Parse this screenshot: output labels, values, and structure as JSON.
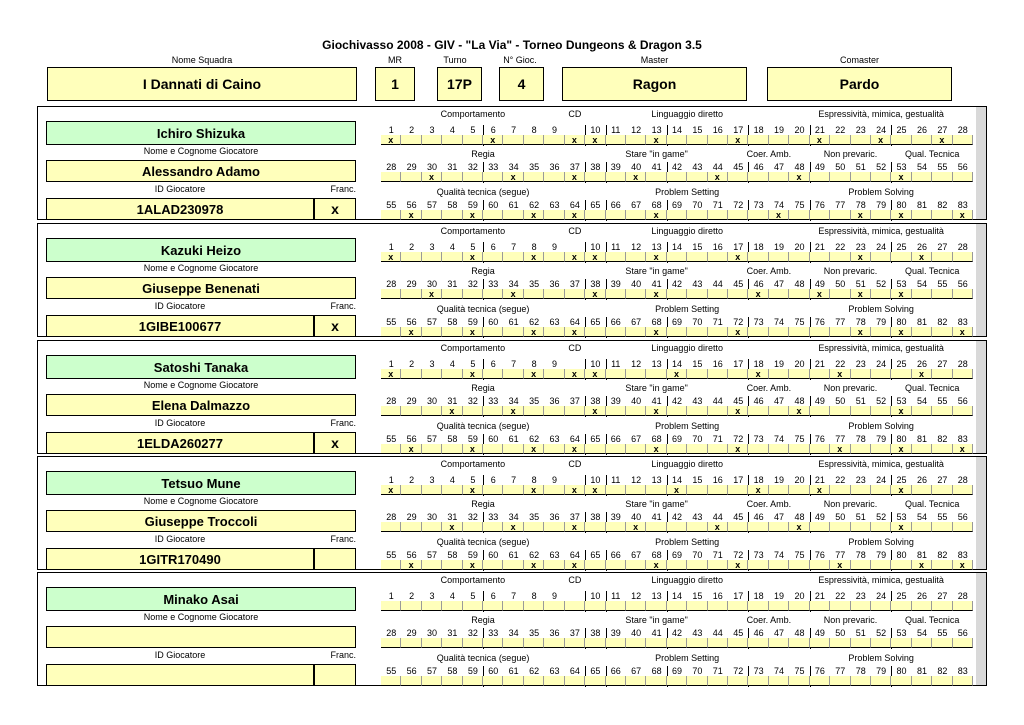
{
  "title": "Giochivasso 2008 - GIV - \"La Via\" - Torneo Dungeons & Dragon 3.5",
  "header": {
    "labels": {
      "team": "Nome Squadra",
      "mr": "MR",
      "turn": "Turno",
      "players": "N° Gioc.",
      "master": "Master",
      "comaster": "Comaster"
    },
    "team": "I Dannati di Caino",
    "mr": "1",
    "turn": "17P",
    "players": "4",
    "master": "Ragon",
    "comaster": "Pardo"
  },
  "labels": {
    "player_name": "Nome e Cognome Giocatore",
    "player_id": "ID Giocatore",
    "franc": "Franc.",
    "comportamento": "Comportamento",
    "cd": "CD",
    "linguaggio": "Linguaggio diretto",
    "espressivita": "Espressività, mimica, gestualità",
    "regia": "Regia",
    "stare": "Stare \"in game\"",
    "coer": "Coer. Amb.",
    "nonprev": "Non prevaric.",
    "qualtec": "Qual. Tecnica",
    "qualtec2": "Qualità tecnica (segue)",
    "problem_setting": "Problem Setting",
    "problem_solving": "Problem Solving"
  },
  "players": [
    {
      "character": "Ichiro Shizuka",
      "player": "Alessandro Adamo",
      "id": "1ALAD230978",
      "franc": "x",
      "row1": [
        1,
        6,
        10,
        13,
        17,
        21,
        24,
        27
      ],
      "row2": [
        30,
        34,
        37,
        40,
        44,
        48,
        53
      ],
      "row3": [
        56,
        59,
        62,
        64,
        68,
        74,
        78,
        80,
        83
      ]
    },
    {
      "character": "Kazuki Heizo",
      "player": "Giuseppe Benenati",
      "id": "1GIBE100677",
      "franc": "x",
      "row1": [
        1,
        5,
        8,
        10,
        13,
        17,
        23,
        26
      ],
      "row2": [
        30,
        34,
        38,
        41,
        46,
        49,
        51,
        53
      ],
      "row3": [
        56,
        59,
        62,
        64,
        68,
        72,
        78,
        80,
        83
      ]
    },
    {
      "character": "Satoshi Tanaka",
      "player": "Elena Dalmazzo",
      "id": "1ELDA260277",
      "franc": "x",
      "row1": [
        1,
        5,
        8,
        10,
        14,
        18,
        22,
        26
      ],
      "row2": [
        31,
        34,
        38,
        41,
        45,
        48,
        53
      ],
      "row3": [
        56,
        59,
        62,
        64,
        68,
        72,
        77,
        80,
        83
      ]
    },
    {
      "character": "Tetsuo Mune",
      "player": "Giuseppe Troccoli",
      "id": "1GITR170490",
      "franc": "",
      "row1": [
        1,
        5,
        8,
        10,
        14,
        18,
        21,
        25
      ],
      "row2": [
        31,
        34,
        37,
        40,
        44,
        48,
        53
      ],
      "row3": [
        56,
        59,
        62,
        64,
        68,
        72,
        77,
        81,
        83
      ]
    },
    {
      "character": "Minako Asai",
      "player": "",
      "id": "",
      "franc": "",
      "row1": [],
      "row2": [],
      "row3": []
    }
  ]
}
